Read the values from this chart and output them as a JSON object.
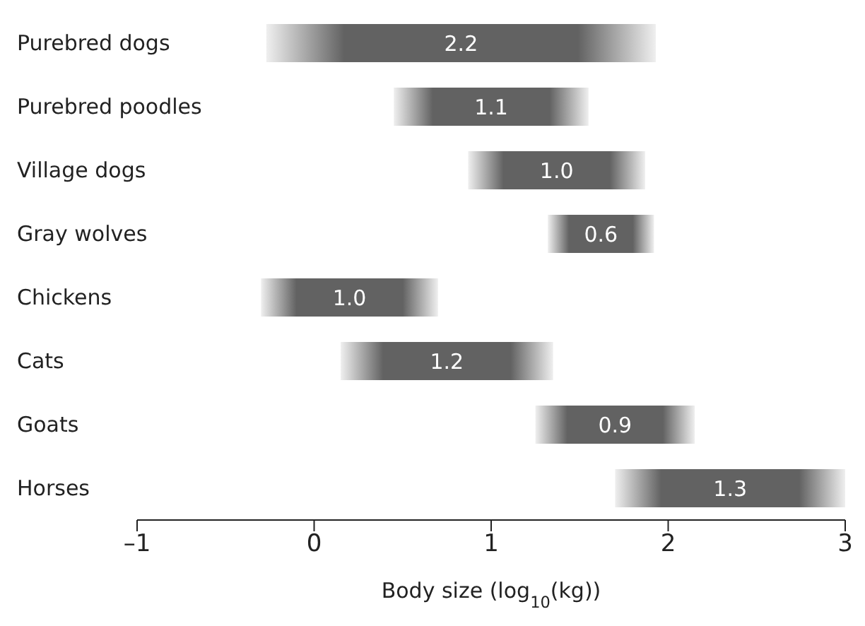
{
  "chart_data": {
    "type": "bar",
    "orientation": "horizontal",
    "xlabel": "Body size (log$_{10}$(kg))",
    "categories": [
      "Purebred dogs",
      "Purebred poodles",
      "Village dogs",
      "Gray wolves",
      "Chickens",
      "Cats",
      "Goats",
      "Horses"
    ],
    "base": [
      -0.27,
      0.45,
      0.87,
      1.32,
      -0.3,
      0.15,
      1.25,
      1.7
    ],
    "values": [
      2.2,
      1.1,
      1.0,
      0.6,
      1.0,
      1.2,
      0.9,
      1.3
    ],
    "value_labels": [
      "2.2",
      "1.1",
      "1.0",
      "0.6",
      "1.0",
      "1.2",
      "0.9",
      "1.3"
    ],
    "color": "#626262",
    "xlim": [
      -1,
      3
    ],
    "xticks": [
      {
        "value": -1,
        "label": "–1"
      },
      0,
      1,
      2,
      3
    ]
  }
}
